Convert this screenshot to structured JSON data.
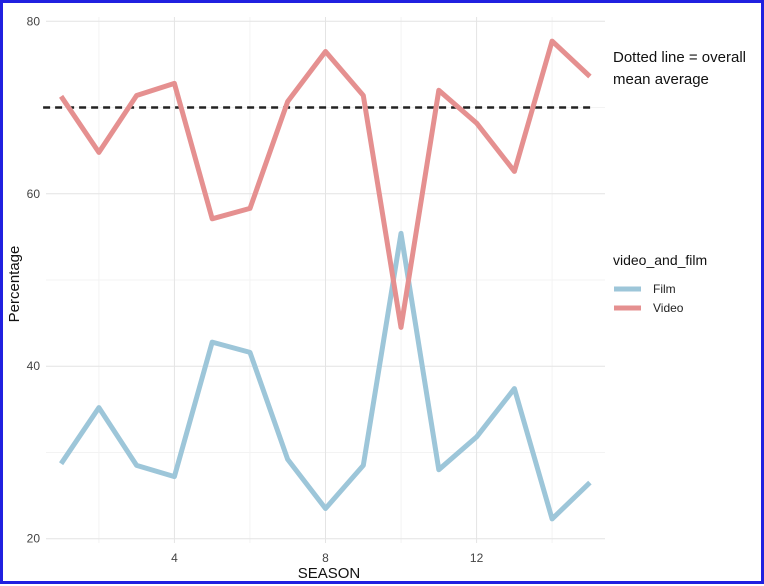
{
  "chart_data": {
    "type": "line",
    "xlabel": "SEASON",
    "ylabel": "Percentage",
    "xlim": [
      0.6,
      15.4
    ],
    "ylim": [
      19.5,
      80.5
    ],
    "x_ticks": [
      4,
      8,
      12
    ],
    "y_ticks": [
      20,
      40,
      60,
      80
    ],
    "grid": true,
    "legend": {
      "title": "video_and_film",
      "position": "right"
    },
    "annotation": [
      "Dotted line = overall",
      "mean average"
    ],
    "reference_line": {
      "value": 70,
      "style": "dashed",
      "color": "#222222"
    },
    "x": [
      1,
      2,
      3,
      4,
      5,
      6,
      7,
      8,
      9,
      10,
      11,
      12,
      13,
      14,
      15
    ],
    "series": [
      {
        "name": "Film",
        "color": "#9dc6d9",
        "values": [
          28.7,
          35.2,
          28.5,
          27.2,
          42.8,
          41.6,
          29.2,
          23.5,
          28.5,
          55.4,
          28.0,
          31.8,
          37.4,
          22.3,
          26.5
        ]
      },
      {
        "name": "Video",
        "color": "#e59090",
        "values": [
          71.3,
          64.8,
          71.4,
          72.8,
          57.1,
          58.3,
          70.7,
          76.5,
          71.4,
          44.5,
          72.0,
          68.2,
          62.6,
          77.7,
          73.6
        ]
      }
    ]
  }
}
